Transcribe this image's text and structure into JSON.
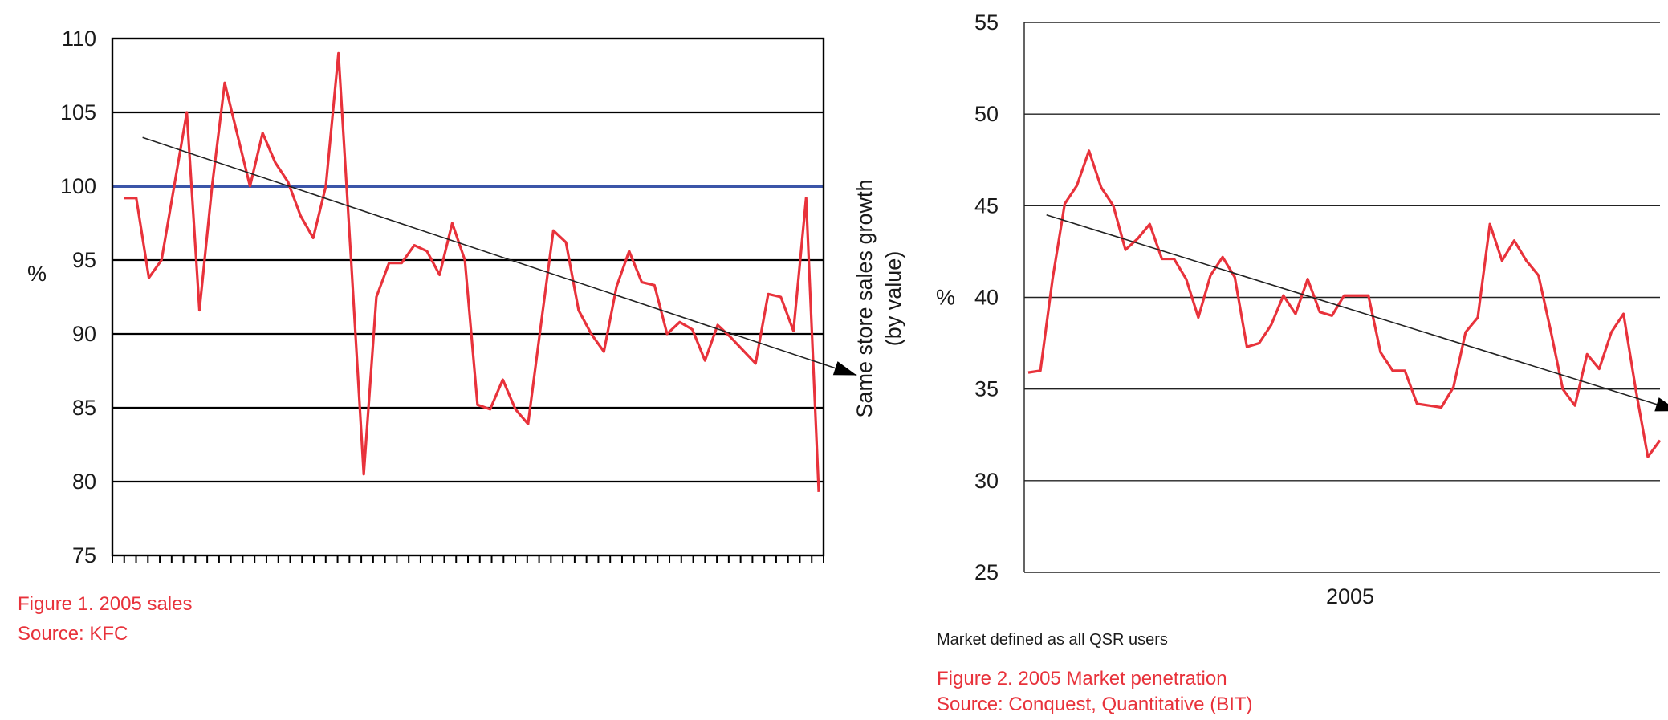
{
  "colors": {
    "series": "#e8323b",
    "baseline": "#3b55a8",
    "trend": "#222222",
    "grid": "#000000",
    "caption": "#e8323b"
  },
  "chart_data": [
    {
      "type": "line",
      "ylabel": "%",
      "right_label": [
        "Same store sales growth",
        "(by value)"
      ],
      "ylim": [
        75,
        110
      ],
      "yticks": [
        75,
        80,
        85,
        90,
        95,
        100,
        105,
        110
      ],
      "grid": true,
      "x_tick_count": 60,
      "reference_line": {
        "value": 100
      },
      "trend": {
        "start": [
          1.5,
          103.3
        ],
        "end": [
          58,
          87.2
        ],
        "arrow": true
      },
      "series": [
        {
          "values": [
            99.2,
            99.2,
            93.8,
            95.0,
            100.0,
            105.0,
            91.6,
            100.0,
            107.0,
            103.5,
            100.0,
            103.6,
            101.6,
            100.3,
            98.0,
            96.5,
            100.0,
            109.0,
            95.0,
            80.5,
            92.5,
            94.8,
            94.8,
            96.0,
            95.6,
            94.0,
            97.5,
            95.0,
            85.2,
            84.9,
            86.9,
            84.9,
            83.9,
            90.5,
            97.0,
            96.2,
            91.6,
            90.0,
            88.8,
            93.2,
            95.6,
            93.5,
            93.3,
            90.0,
            90.8,
            90.3,
            88.2,
            90.6,
            89.8,
            88.9,
            88.0,
            92.7,
            92.5,
            90.2,
            99.2,
            79.3
          ]
        }
      ],
      "caption": [
        "Figure 1. 2005 sales",
        "Source: KFC"
      ]
    },
    {
      "type": "line",
      "ylabel": "%",
      "xlabel": "2005",
      "ylim": [
        25,
        55
      ],
      "yticks": [
        25,
        30,
        35,
        40,
        45,
        50,
        55
      ],
      "grid": true,
      "trend": {
        "start": [
          1.5,
          44.5
        ],
        "end": [
          53.5,
          33.8
        ],
        "arrow": true
      },
      "series": [
        {
          "values": [
            35.9,
            36.0,
            41.0,
            45.1,
            46.1,
            48.0,
            46.0,
            45.0,
            42.6,
            43.2,
            44.0,
            42.1,
            42.1,
            41.0,
            38.9,
            41.2,
            42.2,
            41.1,
            37.3,
            37.5,
            38.5,
            40.1,
            39.1,
            41.0,
            39.2,
            39.0,
            40.1,
            40.1,
            40.1,
            37.0,
            36.0,
            36.0,
            34.2,
            34.1,
            34.0,
            35.1,
            38.1,
            38.9,
            44.0,
            42.0,
            43.1,
            42.0,
            41.2,
            38.2,
            35.0,
            34.1,
            36.9,
            36.1,
            38.1,
            39.1,
            35.0,
            31.3,
            32.2
          ]
        }
      ],
      "note": "Market defined as all QSR users",
      "caption": [
        "Figure 2. 2005 Market penetration",
        "Source: Conquest, Quantitative (BIT)"
      ]
    }
  ]
}
